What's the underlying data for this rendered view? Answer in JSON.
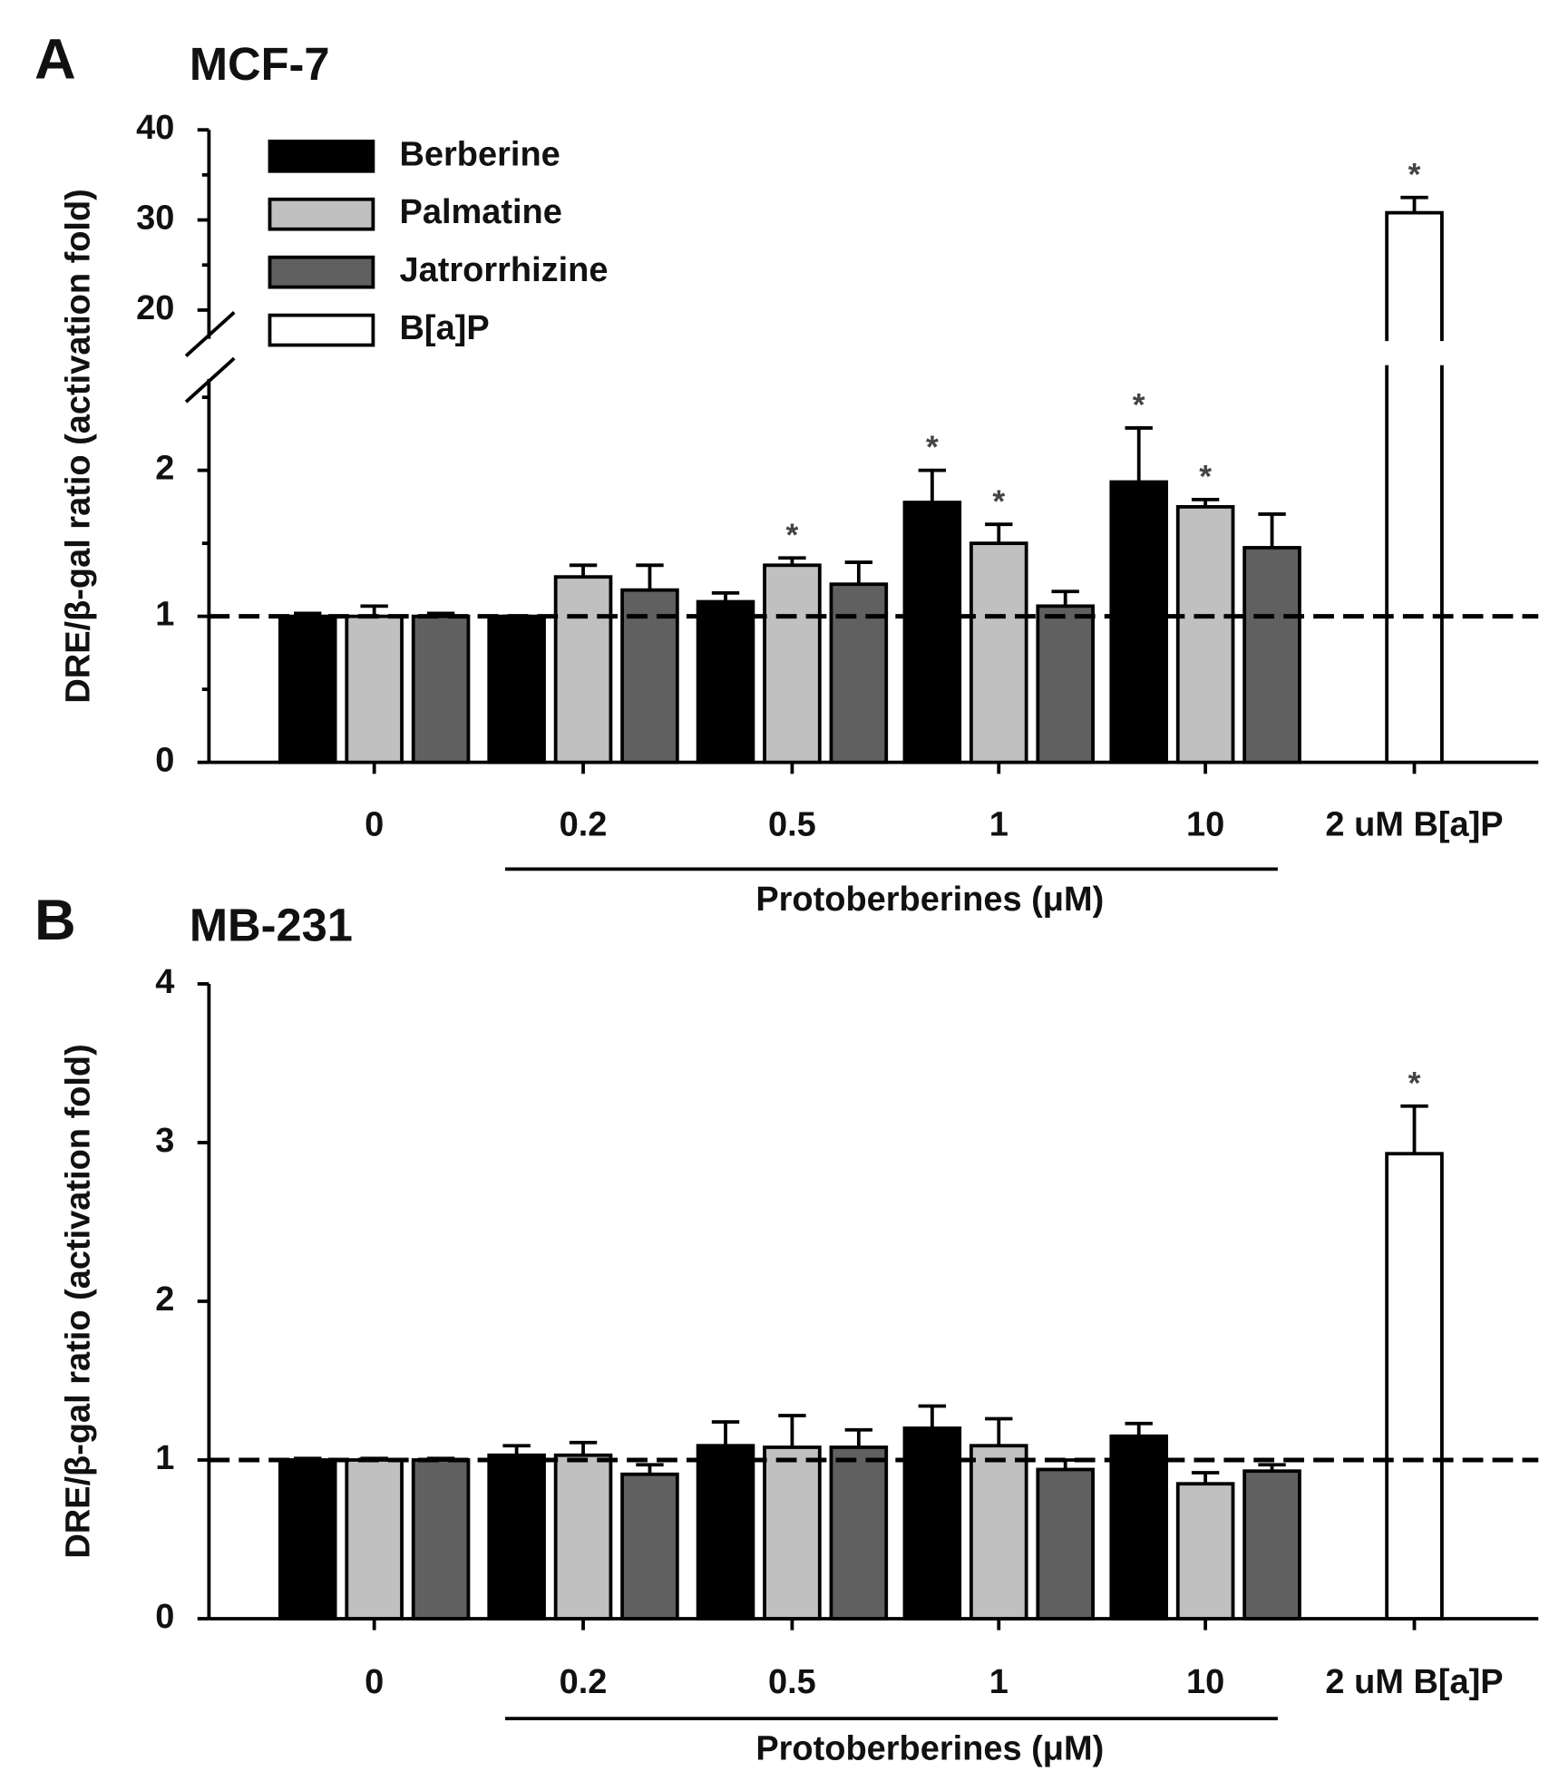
{
  "chart_data": [
    {
      "type": "bar",
      "panel": "A",
      "title": "MCF-7",
      "ylabel": "DRE/β-gal ratio (activation fold)",
      "categories": [
        "0",
        "0.2",
        "0.5",
        "1",
        "10",
        "2 uM B[a]P"
      ],
      "group_label": "Protoberberines (μM)",
      "ylim": [
        0,
        40
      ],
      "ybreak": [
        2.5,
        18
      ],
      "yticks": [
        0,
        1,
        2,
        20,
        30,
        40
      ],
      "yminor": [
        0.5,
        1.5,
        2.5,
        25,
        35
      ],
      "reference_line": 1,
      "legend": "upper left",
      "series": [
        {
          "name": "Berberine",
          "color": "#000000",
          "values": [
            1.0,
            1.0,
            1.1,
            1.78,
            1.92,
            null
          ],
          "errors": [
            0.02,
            0.0,
            0.06,
            0.22,
            0.37,
            null
          ],
          "significance": [
            null,
            null,
            null,
            "*",
            "*",
            null
          ]
        },
        {
          "name": "Palmatine",
          "color": "#c0c0c0",
          "values": [
            1.0,
            1.27,
            1.35,
            1.5,
            1.75,
            null
          ],
          "errors": [
            0.07,
            0.08,
            0.05,
            0.13,
            0.05,
            null
          ],
          "significance": [
            null,
            null,
            "*",
            "*",
            "*",
            null
          ]
        },
        {
          "name": "Jatrorrhizine",
          "color": "#606060",
          "values": [
            1.0,
            1.18,
            1.22,
            1.07,
            1.47,
            null
          ],
          "errors": [
            0.02,
            0.17,
            0.15,
            0.1,
            0.23,
            null
          ],
          "significance": [
            null,
            null,
            null,
            null,
            null,
            null
          ]
        },
        {
          "name": "B[a]P",
          "color": "#ffffff",
          "values": [
            null,
            null,
            null,
            null,
            null,
            30.8
          ],
          "errors": [
            null,
            null,
            null,
            null,
            null,
            1.7
          ],
          "significance": [
            null,
            null,
            null,
            null,
            null,
            "*"
          ]
        }
      ]
    },
    {
      "type": "bar",
      "panel": "B",
      "title": "MB-231",
      "ylabel": "DRE/β-gal ratio (activation fold)",
      "categories": [
        "0",
        "0.2",
        "0.5",
        "1",
        "10",
        "2 uM B[a]P"
      ],
      "group_label": "Protoberberines (μM)",
      "ylim": [
        0,
        4
      ],
      "yticks": [
        0,
        1,
        2,
        3,
        4
      ],
      "reference_line": 1,
      "series": [
        {
          "color": "#000000",
          "values": [
            1.0,
            1.03,
            1.09,
            1.2,
            1.15,
            null
          ],
          "errors": [
            0.01,
            0.06,
            0.15,
            0.14,
            0.08,
            null
          ],
          "significance": [
            null,
            null,
            null,
            null,
            null,
            null
          ]
        },
        {
          "color": "#c0c0c0",
          "values": [
            1.0,
            1.03,
            1.08,
            1.09,
            0.85,
            null
          ],
          "errors": [
            0.01,
            0.08,
            0.2,
            0.17,
            0.07,
            null
          ],
          "significance": [
            null,
            null,
            null,
            null,
            null,
            null
          ]
        },
        {
          "color": "#606060",
          "values": [
            1.0,
            0.91,
            1.08,
            0.94,
            0.93,
            null
          ],
          "errors": [
            0.01,
            0.06,
            0.11,
            0.06,
            0.04,
            null
          ],
          "significance": [
            null,
            null,
            null,
            null,
            null,
            null
          ]
        },
        {
          "color": "#ffffff",
          "values": [
            null,
            null,
            null,
            null,
            null,
            2.93
          ],
          "errors": [
            null,
            null,
            null,
            null,
            null,
            0.3
          ],
          "significance": [
            null,
            null,
            null,
            null,
            null,
            "*"
          ]
        }
      ]
    }
  ]
}
